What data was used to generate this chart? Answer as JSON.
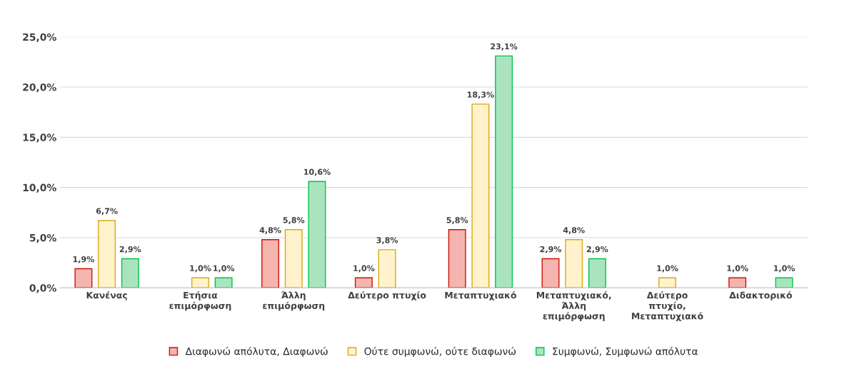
{
  "chart_data": {
    "type": "bar",
    "categories": [
      "Κανένας",
      "Ετήσια επιμόρφωση",
      "Άλλη επιμόρφωση",
      "Δεύτερο πτυχίο",
      "Μεταπτυχιακό",
      "Μεταπτυχιακό, Άλλη επιμόρφωση",
      "Δεύτερο πτυχίο, Μεταπτυχιακό",
      "Διδακτορικό"
    ],
    "series": [
      {
        "name": "Διαφωνώ απόλυτα, Διαφωνώ",
        "color": "#f4b5b0",
        "values": [
          1.9,
          null,
          4.8,
          1.0,
          5.8,
          2.9,
          null,
          1.0
        ],
        "value_labels": [
          "1,9%",
          null,
          "4,8%",
          "1,0%",
          "5,8%",
          "2,9%",
          null,
          "1,0%"
        ]
      },
      {
        "name": "Ούτε συμφωνώ, ούτε διαφωνώ",
        "color": "#fff2cc",
        "values": [
          6.7,
          1.0,
          5.8,
          3.8,
          18.3,
          4.8,
          1.0,
          null
        ],
        "value_labels": [
          "6,7%",
          "1,0%",
          "5,8%",
          "3,8%",
          "18,3%",
          "4,8%",
          "1,0%",
          null
        ]
      },
      {
        "name": "Συμφωνώ, Συμφωνώ απόλυτα",
        "color": "#a9e4bf",
        "values": [
          2.9,
          1.0,
          10.6,
          null,
          23.1,
          2.9,
          null,
          1.0
        ],
        "value_labels": [
          "2,9%",
          "1,0%",
          "10,6%",
          null,
          "23,1%",
          "2,9%",
          null,
          "1,0%"
        ]
      }
    ],
    "ylim": [
      0,
      25
    ],
    "yticks": [
      {
        "value": 0,
        "label": "0,0%"
      },
      {
        "value": 5,
        "label": "5,0%"
      },
      {
        "value": 10,
        "label": "10,0%"
      },
      {
        "value": 15,
        "label": "15,0%"
      },
      {
        "value": 20,
        "label": "20,0%"
      },
      {
        "value": 25,
        "label": "25,0%"
      }
    ],
    "grid": "y",
    "legend": "bottom"
  }
}
